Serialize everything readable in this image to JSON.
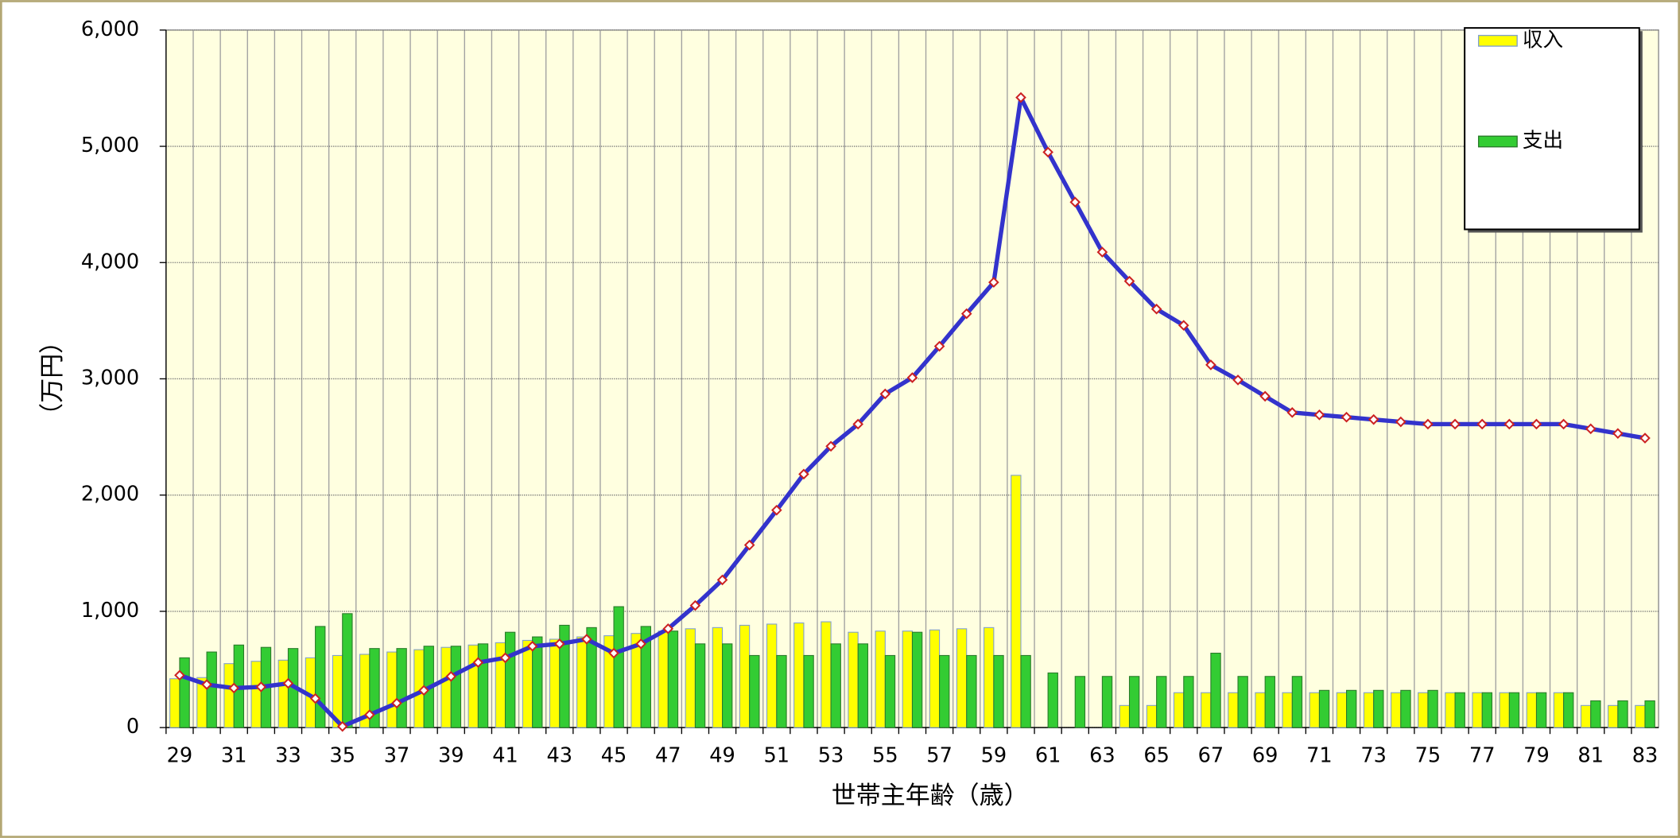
{
  "chart_data": {
    "type": "bar",
    "x_label": "世帯主年齢（歳）",
    "y_label": "（万円）",
    "categories": [
      29,
      null,
      31,
      null,
      33,
      null,
      35,
      null,
      37,
      null,
      39,
      null,
      41,
      null,
      43,
      null,
      45,
      null,
      47,
      null,
      49,
      null,
      51,
      null,
      53,
      null,
      55,
      null,
      57,
      null,
      59,
      null,
      61,
      null,
      63,
      null,
      65,
      null,
      67,
      null,
      69,
      null,
      71,
      null,
      73,
      null,
      75,
      null,
      77,
      null,
      79,
      null,
      81,
      null,
      83
    ],
    "series": [
      {
        "name": "収入",
        "color": "#ffff00",
        "values": [
          420,
          430,
          550,
          570,
          580,
          600,
          620,
          630,
          650,
          670,
          690,
          710,
          730,
          750,
          760,
          780,
          790,
          810,
          830,
          850,
          860,
          880,
          890,
          900,
          910,
          820,
          830,
          830,
          840,
          850,
          860,
          2170,
          0,
          0,
          0,
          190,
          190,
          300,
          300,
          300,
          300,
          300,
          300,
          300,
          300,
          300,
          300,
          300,
          300,
          300,
          300,
          300,
          190,
          190,
          190
        ]
      },
      {
        "name": "支出",
        "color": "#33cc33",
        "values": [
          600,
          650,
          710,
          690,
          680,
          870,
          980,
          680,
          680,
          700,
          700,
          720,
          820,
          780,
          880,
          860,
          1040,
          870,
          830,
          720,
          720,
          620,
          620,
          620,
          720,
          720,
          620,
          820,
          620,
          620,
          620,
          620,
          470,
          440,
          440,
          440,
          440,
          440,
          640,
          440,
          440,
          440,
          320,
          320,
          320,
          320,
          320,
          300,
          300,
          300,
          300,
          300,
          230,
          230,
          230
        ]
      },
      {
        "type": "line",
        "color": "#3333cc",
        "values": [
          450,
          370,
          340,
          350,
          380,
          250,
          10,
          110,
          210,
          320,
          440,
          560,
          600,
          700,
          720,
          760,
          640,
          720,
          850,
          1050,
          1270,
          1570,
          1870,
          2180,
          2420,
          2610,
          2870,
          3010,
          3280,
          3560,
          3830,
          5420,
          4950,
          4520,
          4090,
          3840,
          3600,
          3460,
          3120,
          2990,
          2850,
          2710,
          2690,
          2670,
          2650,
          2630,
          2610,
          2610,
          2610,
          2610,
          2610,
          2610,
          2570,
          2530,
          2490
        ]
      }
    ],
    "ylim": [
      0,
      6000
    ],
    "yticks": [
      0,
      {
        "value": 1000,
        "label": "1,000"
      },
      {
        "value": 2000,
        "label": "2,000"
      },
      {
        "value": 3000,
        "label": "3,000"
      },
      {
        "value": 4000,
        "label": "4,000"
      },
      {
        "value": 5000,
        "label": "5,000"
      },
      {
        "value": 6000,
        "label": "6,000"
      }
    ],
    "grid": true,
    "legend": "top-right"
  }
}
